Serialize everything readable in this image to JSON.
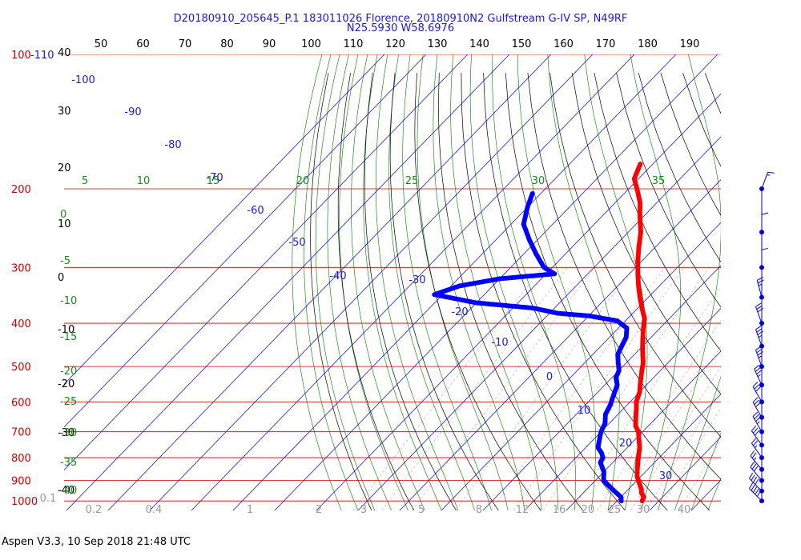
{
  "header": {
    "line1": "D20180910_205645_P.1 183011026 Florence, 20180910N2 Gulfstream G-IV SP, N49RF",
    "line2": "N25.5930 W58.6976"
  },
  "footer": "Aspen V3.3, 10 Sep 2018  21:48 UTC",
  "colors": {
    "temperature": "#ff0000",
    "dewpoint": "#0000ff",
    "isobar": "#cc0000",
    "isotherm": "#0000cc",
    "dry_adiabat": "#000000",
    "moist_adiabat": "#007700",
    "mixing_ratio": "#aaaaaa"
  },
  "chart_data": {
    "type": "scatter",
    "subtype": "skew-T log-P diagram",
    "pressure_labels": [
      "100",
      "200",
      "300",
      "400",
      "500",
      "600",
      "700",
      "800",
      "900",
      "1000"
    ],
    "height_labels": [
      "-110",
      "",
      "",
      "",
      "",
      "",
      "",
      "",
      "",
      ""
    ],
    "top_axis_labels": [
      "50",
      "60",
      "70",
      "80",
      "90",
      "100",
      "110",
      "120",
      "130",
      "140",
      "150",
      "160",
      "170",
      "180",
      "190"
    ],
    "left_axis_labels": [
      "40",
      "30",
      "20",
      "10",
      "0",
      "-10",
      "-20",
      "-30",
      "-40"
    ],
    "isotherm_labels": [
      "-100",
      "-90",
      "-80",
      "-70",
      "-60",
      "-50",
      "-40",
      "-30",
      "-20",
      "-10",
      "0",
      "10",
      "20",
      "30"
    ],
    "theta_e_labels": [
      "5",
      "10",
      "15",
      "20",
      "25",
      "30",
      "35"
    ],
    "moist_left_labels": [
      "0",
      "-5",
      "-10",
      "-15",
      "-20",
      "-25",
      "-30",
      "-35",
      "-40"
    ],
    "mixing_ratio_labels": [
      "0.1",
      "0.2",
      "0.4",
      "1",
      "2",
      "3",
      "5",
      "8",
      "12",
      "16",
      "20",
      "25",
      "30",
      "40"
    ],
    "series": [
      {
        "key": "temperature",
        "points": [
          [
            176,
            -53
          ],
          [
            190,
            -51
          ],
          [
            200,
            -48
          ],
          [
            215,
            -44
          ],
          [
            230,
            -41
          ],
          [
            250,
            -37
          ],
          [
            270,
            -34
          ],
          [
            290,
            -31
          ],
          [
            310,
            -28
          ],
          [
            330,
            -25
          ],
          [
            350,
            -22
          ],
          [
            370,
            -19
          ],
          [
            390,
            -16
          ],
          [
            410,
            -14
          ],
          [
            430,
            -12
          ],
          [
            450,
            -10
          ],
          [
            470,
            -8
          ],
          [
            490,
            -6
          ],
          [
            510,
            -4.5
          ],
          [
            530,
            -3
          ],
          [
            550,
            -1.5
          ],
          [
            570,
            0
          ],
          [
            600,
            1.5
          ],
          [
            620,
            3
          ],
          [
            650,
            5
          ],
          [
            680,
            7
          ],
          [
            700,
            9
          ],
          [
            730,
            11
          ],
          [
            760,
            13
          ],
          [
            790,
            14.5
          ],
          [
            820,
            16
          ],
          [
            850,
            17.5
          ],
          [
            880,
            19
          ],
          [
            910,
            21
          ],
          [
            940,
            23
          ],
          [
            960,
            24
          ],
          [
            980,
            25.5
          ],
          [
            1000,
            26
          ]
        ]
      },
      {
        "key": "dewpoint",
        "points": [
          [
            205,
            -72
          ],
          [
            220,
            -70
          ],
          [
            240,
            -67
          ],
          [
            260,
            -62
          ],
          [
            280,
            -57
          ],
          [
            300,
            -52
          ],
          [
            310,
            -48
          ],
          [
            318,
            -60
          ],
          [
            330,
            -68
          ],
          [
            345,
            -72
          ],
          [
            360,
            -60
          ],
          [
            370,
            -45
          ],
          [
            380,
            -38
          ],
          [
            385,
            -30
          ],
          [
            395,
            -22
          ],
          [
            410,
            -18
          ],
          [
            430,
            -16
          ],
          [
            450,
            -15
          ],
          [
            470,
            -14
          ],
          [
            490,
            -12
          ],
          [
            510,
            -10
          ],
          [
            530,
            -9
          ],
          [
            550,
            -7
          ],
          [
            570,
            -6
          ],
          [
            590,
            -5
          ],
          [
            610,
            -4
          ],
          [
            640,
            -3
          ],
          [
            670,
            -1
          ],
          [
            700,
            0
          ],
          [
            720,
            1
          ],
          [
            740,
            2
          ],
          [
            760,
            3
          ],
          [
            780,
            5
          ],
          [
            800,
            6.5
          ],
          [
            820,
            7
          ],
          [
            840,
            8.5
          ],
          [
            860,
            10
          ],
          [
            880,
            11
          ],
          [
            900,
            12
          ],
          [
            920,
            14
          ],
          [
            940,
            16
          ],
          [
            960,
            18
          ],
          [
            980,
            20
          ],
          [
            1000,
            21
          ]
        ]
      }
    ],
    "wind_barbs": [
      {
        "p": 200,
        "speed": 15,
        "dir": 160
      },
      {
        "p": 250,
        "speed": 10,
        "dir": 180
      },
      {
        "p": 300,
        "speed": 10,
        "dir": 180
      },
      {
        "p": 350,
        "speed": 25,
        "dir": 195
      },
      {
        "p": 400,
        "speed": 30,
        "dir": 200
      },
      {
        "p": 450,
        "speed": 35,
        "dir": 200
      },
      {
        "p": 500,
        "speed": 35,
        "dir": 200
      },
      {
        "p": 550,
        "speed": 35,
        "dir": 205
      },
      {
        "p": 600,
        "speed": 30,
        "dir": 210
      },
      {
        "p": 650,
        "speed": 30,
        "dir": 210
      },
      {
        "p": 700,
        "speed": 35,
        "dir": 210
      },
      {
        "p": 750,
        "speed": 30,
        "dir": 215
      },
      {
        "p": 800,
        "speed": 25,
        "dir": 215
      },
      {
        "p": 850,
        "speed": 25,
        "dir": 220
      },
      {
        "p": 900,
        "speed": 30,
        "dir": 220
      },
      {
        "p": 950,
        "speed": 40,
        "dir": 225
      },
      {
        "p": 1000,
        "speed": 50,
        "dir": 225
      }
    ]
  }
}
